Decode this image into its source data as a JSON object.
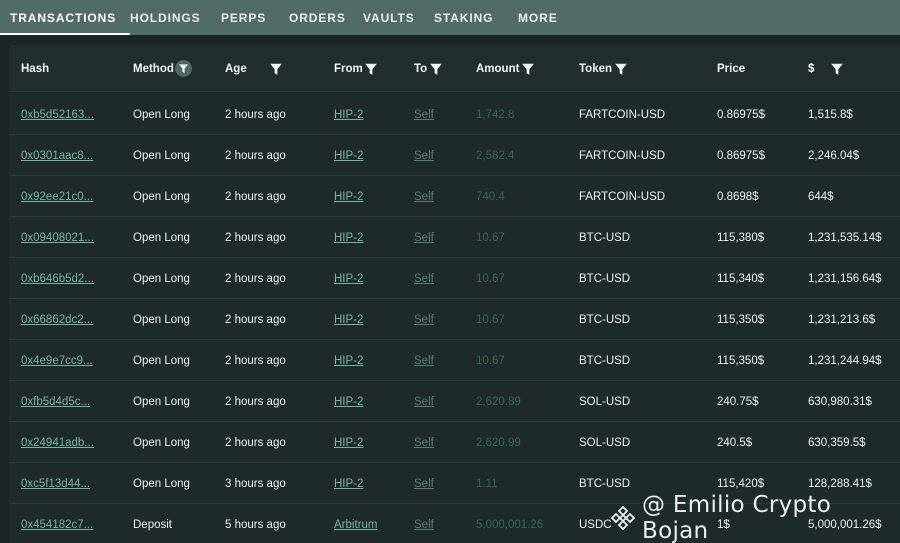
{
  "tabs": [
    {
      "label": "TRANSACTIONS",
      "active": true
    },
    {
      "label": "HOLDINGS",
      "active": false
    },
    {
      "label": "PERPS",
      "active": false
    },
    {
      "label": "ORDERS",
      "active": false
    },
    {
      "label": "VAULTS",
      "active": false
    },
    {
      "label": "STAKING",
      "active": false
    },
    {
      "label": "MORE",
      "active": false
    }
  ],
  "table": {
    "headers": {
      "hash": "Hash",
      "method": "Method",
      "age": "Age",
      "from": "From",
      "to": "To",
      "amount": "Amount",
      "token": "Token",
      "price": "Price",
      "usd": "$"
    },
    "rows": [
      {
        "hash": "0xb5d52163...",
        "method": "Open Long",
        "age": "2 hours ago",
        "from": "HIP-2",
        "to": "Self",
        "amount": "1,742.8",
        "token": "FARTCOIN-USD",
        "price": "0.86975$",
        "usd": "1,515.8$"
      },
      {
        "hash": "0x0301aac8...",
        "method": "Open Long",
        "age": "2 hours ago",
        "from": "HIP-2",
        "to": "Self",
        "amount": "2,582.4",
        "token": "FARTCOIN-USD",
        "price": "0.86975$",
        "usd": "2,246.04$"
      },
      {
        "hash": "0x92ee21c0...",
        "method": "Open Long",
        "age": "2 hours ago",
        "from": "HIP-2",
        "to": "Self",
        "amount": "740.4",
        "token": "FARTCOIN-USD",
        "price": "0.8698$",
        "usd": "644$"
      },
      {
        "hash": "0x09408021...",
        "method": "Open Long",
        "age": "2 hours ago",
        "from": "HIP-2",
        "to": "Self",
        "amount": "10.67",
        "token": "BTC-USD",
        "price": "115,380$",
        "usd": "1,231,535.14$"
      },
      {
        "hash": "0xb646b5d2...",
        "method": "Open Long",
        "age": "2 hours ago",
        "from": "HIP-2",
        "to": "Self",
        "amount": "10.67",
        "token": "BTC-USD",
        "price": "115,340$",
        "usd": "1,231,156.64$"
      },
      {
        "hash": "0x66862dc2...",
        "method": "Open Long",
        "age": "2 hours ago",
        "from": "HIP-2",
        "to": "Self",
        "amount": "10.67",
        "token": "BTC-USD",
        "price": "115,350$",
        "usd": "1,231,213.6$"
      },
      {
        "hash": "0x4e9e7cc9...",
        "method": "Open Long",
        "age": "2 hours ago",
        "from": "HIP-2",
        "to": "Self",
        "amount": "10.67",
        "token": "BTC-USD",
        "price": "115,350$",
        "usd": "1,231,244.94$"
      },
      {
        "hash": "0xfb5d4d5c...",
        "method": "Open Long",
        "age": "2 hours ago",
        "from": "HIP-2",
        "to": "Self",
        "amount": "2,620.89",
        "token": "SOL-USD",
        "price": "240.75$",
        "usd": "630,980.31$"
      },
      {
        "hash": "0x24941adb...",
        "method": "Open Long",
        "age": "2 hours ago",
        "from": "HIP-2",
        "to": "Self",
        "amount": "2,620.99",
        "token": "SOL-USD",
        "price": "240.5$",
        "usd": "630,359.5$"
      },
      {
        "hash": "0xc5f13d44...",
        "method": "Open Long",
        "age": "3 hours ago",
        "from": "HIP-2",
        "to": "Self",
        "amount": "1.11",
        "token": "BTC-USD",
        "price": "115,420$",
        "usd": "128,288.41$"
      },
      {
        "hash": "0x454182c7...",
        "method": "Deposit",
        "age": "5 hours ago",
        "from": "Arbitrum",
        "to": "Self",
        "amount": "5,000,001.26",
        "token": "USDC",
        "price": "1$",
        "usd": "5,000,001.26$"
      }
    ]
  },
  "watermark": {
    "text": "@ Emilio Crypto Bojan",
    "icon": "binance-logo-icon"
  },
  "colors": {
    "tab_bar": "#516b68",
    "background": "#1b2526",
    "link": "#79b3a5",
    "amount": "#3b6650"
  }
}
